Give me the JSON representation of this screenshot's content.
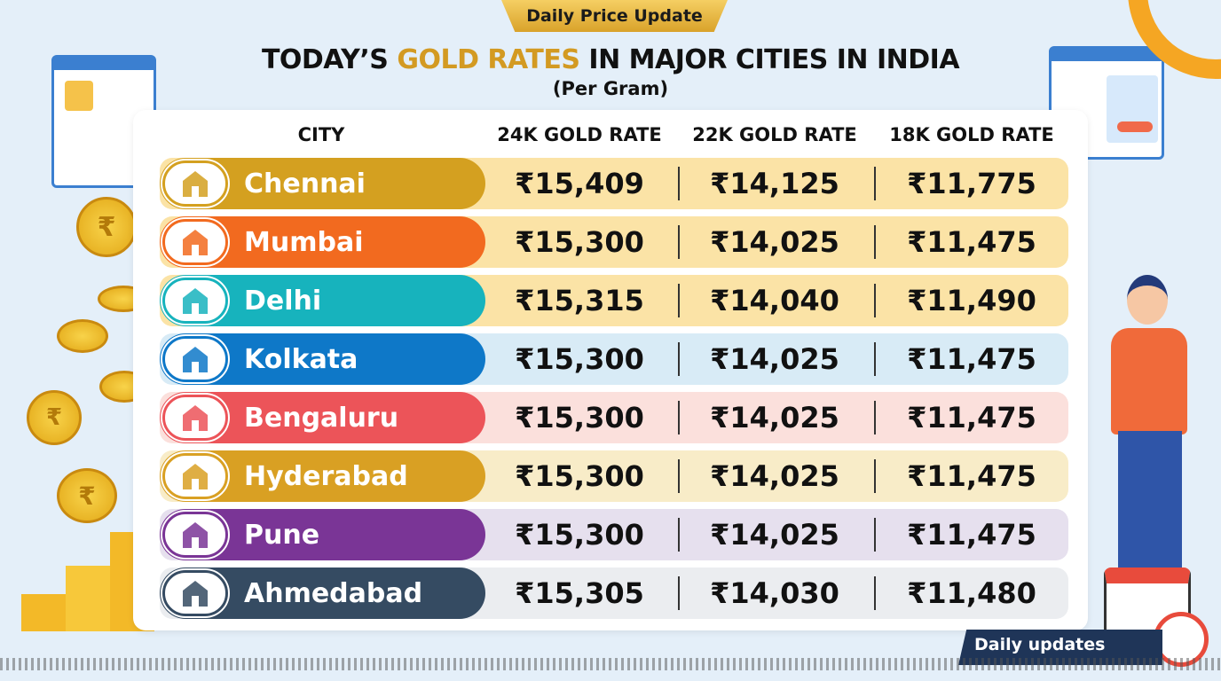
{
  "badge": "Daily Price Update",
  "title": {
    "part1": "TODAY’S ",
    "highlight": "GOLD RATES",
    "part2": " IN MAJOR CITIES IN INDIA"
  },
  "subtitle": "(Per Gram)",
  "headers": [
    "CITY",
    "24K GOLD RATE",
    "22K GOLD RATE",
    "18K GOLD RATE"
  ],
  "rows": [
    {
      "city": "Chennai",
      "k24": "₹15,409",
      "k22": "₹14,125",
      "k18": "₹11,775",
      "color": "#d4a020",
      "bg": "#fbe3a6",
      "icon": "temple-icon"
    },
    {
      "city": "Mumbai",
      "k24": "₹15,300",
      "k22": "₹14,025",
      "k18": "₹11,475",
      "color": "#f26a1f",
      "bg": "#fbe3a6",
      "icon": "gateway-icon"
    },
    {
      "city": "Delhi",
      "k24": "₹15,315",
      "k22": "₹14,040",
      "k18": "₹11,490",
      "color": "#17b3bd",
      "bg": "#fbe3a6",
      "icon": "india-gate-icon"
    },
    {
      "city": "Kolkata",
      "k24": "₹15,300",
      "k22": "₹14,025",
      "k18": "₹11,475",
      "color": "#0e78c8",
      "bg": "#d8ebf6",
      "icon": "bridge-icon"
    },
    {
      "city": "Bengaluru",
      "k24": "₹15,300",
      "k22": "₹14,025",
      "k18": "₹11,475",
      "color": "#ec5459",
      "bg": "#fbe0dc",
      "icon": "palace-icon"
    },
    {
      "city": "Hyderabad",
      "k24": "₹15,300",
      "k22": "₹14,025",
      "k18": "₹11,475",
      "color": "#d9a023",
      "bg": "#f8ecc8",
      "icon": "charminar-icon"
    },
    {
      "city": "Pune",
      "k24": "₹15,300",
      "k22": "₹14,025",
      "k18": "₹11,475",
      "color": "#7a3596",
      "bg": "#e6e0ee",
      "icon": "fort-icon"
    },
    {
      "city": "Ahmedabad",
      "k24": "₹15,305",
      "k22": "₹14,030",
      "k18": "₹11,480",
      "color": "#354b62",
      "bg": "#ebedf0",
      "icon": "house-icon"
    }
  ],
  "footer_badge": "Daily updates",
  "coin_symbol": "₹"
}
